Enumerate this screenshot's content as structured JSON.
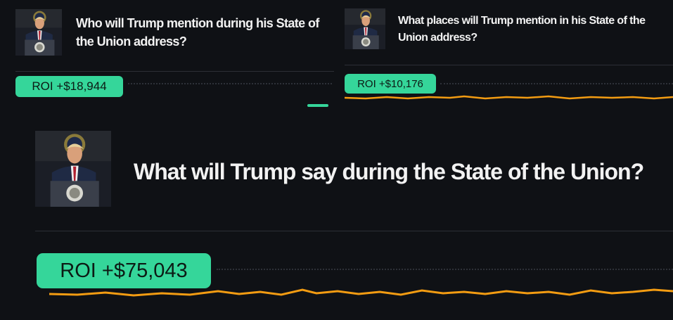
{
  "cards": [
    {
      "title": "Who will Trump mention during his State of the Union address?",
      "roi": "ROI +$18,944"
    },
    {
      "title": "What places will Trump mention in his State of the Union address?",
      "roi": "ROI +$10,176"
    },
    {
      "title": "What will Trump say during the State of the Union?",
      "roi": "ROI +$75,043"
    }
  ]
}
